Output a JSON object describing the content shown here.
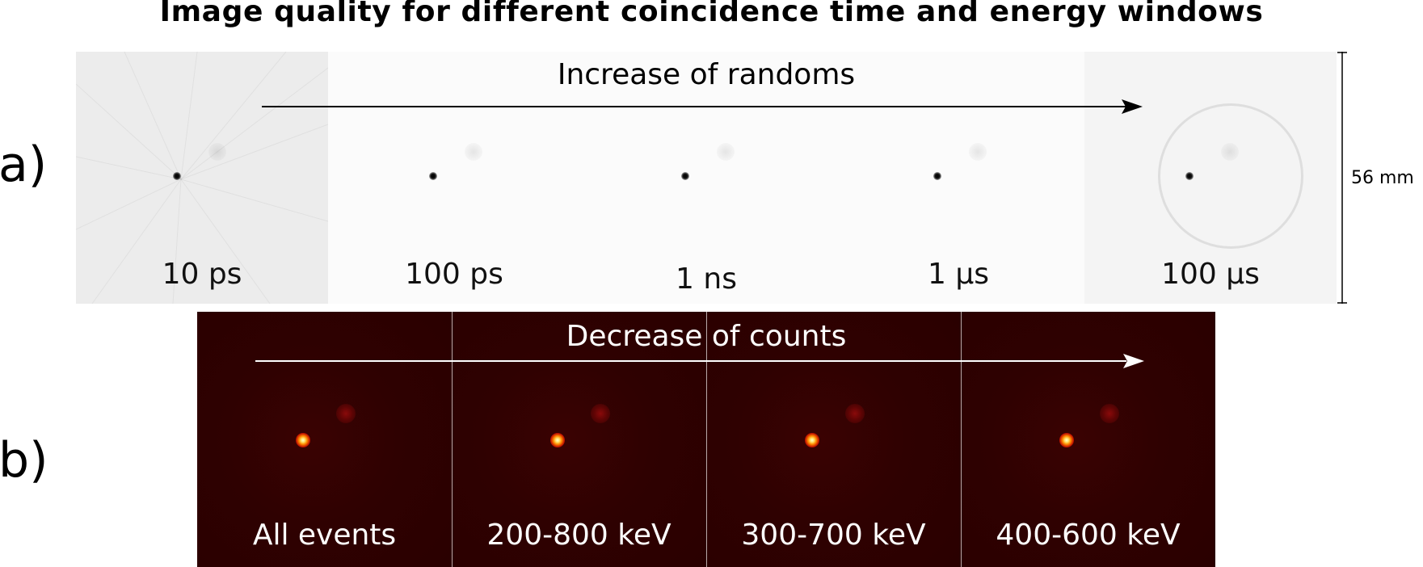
{
  "title": "Image quality for different coincidence time and energy windows",
  "row_a": {
    "label": "a)",
    "arrow_text": "Increase of randoms",
    "panels": [
      {
        "label": "10 ps"
      },
      {
        "label": "100 ps"
      },
      {
        "label": "1 ns"
      },
      {
        "label": "1 µs"
      },
      {
        "label": "100 µs"
      }
    ],
    "scale_label": "56 mm"
  },
  "row_b": {
    "label": "b)",
    "arrow_text": "Decrease of counts",
    "panels": [
      {
        "label": "All events"
      },
      {
        "label": "200-800 keV"
      },
      {
        "label": "300-700 keV"
      },
      {
        "label": "400-600 keV"
      }
    ]
  },
  "colors": {
    "row_b_background": "#2b0000",
    "hot_spot": "#ffd24a",
    "arrow_a": "#000000",
    "arrow_b": "#ffffff"
  }
}
